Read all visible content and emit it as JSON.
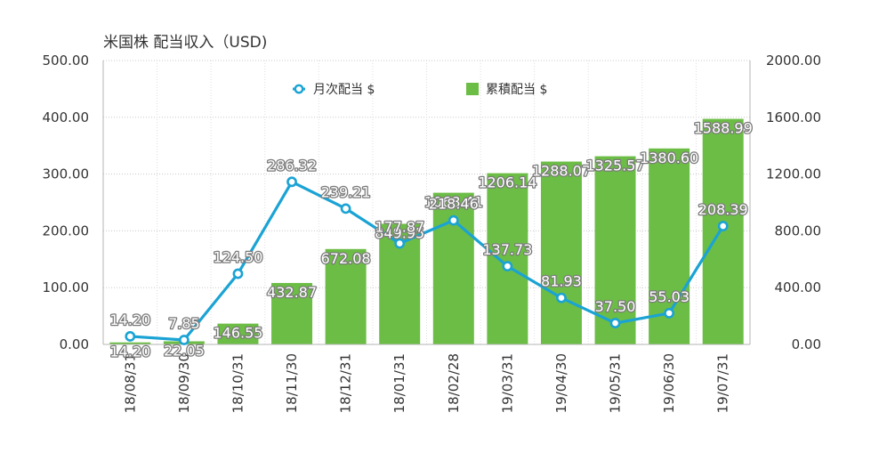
{
  "chart_data": {
    "type": "bar+line",
    "title": "米国株 配当収入（USD)",
    "categories": [
      "18/08/31",
      "18/09/30",
      "18/10/31",
      "18/11/30",
      "18/12/31",
      "18/01/31",
      "18/02/28",
      "19/03/31",
      "19/04/30",
      "19/05/31",
      "19/06/30",
      "19/07/31"
    ],
    "series": [
      {
        "name": "月次配当 $",
        "type": "line",
        "axis": "left",
        "color": "#1aa3d4",
        "values": [
          14.2,
          7.85,
          124.5,
          286.32,
          239.21,
          177.87,
          218.46,
          137.73,
          81.93,
          37.5,
          55.03,
          208.39
        ],
        "labels": [
          "14.20",
          "7.85",
          "124.50",
          "286.32",
          "239.21",
          "177.87",
          "218.46",
          "137.73",
          "81.93",
          "37.50",
          "55.03",
          "208.39"
        ]
      },
      {
        "name": "累積配当 $",
        "type": "bar",
        "axis": "right",
        "color": "#6cbd45",
        "values": [
          14.2,
          22.05,
          146.55,
          432.87,
          672.08,
          849.95,
          1068.41,
          1206.14,
          1288.07,
          1325.57,
          1380.6,
          1588.99
        ],
        "labels": [
          "14.20",
          "22.05",
          "146.55",
          "432.87",
          "672.08",
          "849.95",
          "1068.41",
          "1206.14",
          "1288.07",
          "1325.57",
          "1380.60",
          "1588.99"
        ]
      }
    ],
    "y_left": {
      "ylim": [
        0,
        500
      ],
      "ticks": [
        "0.00",
        "100.00",
        "200.00",
        "300.00",
        "400.00",
        "500.00"
      ]
    },
    "y_right": {
      "ylim": [
        0,
        2000
      ],
      "ticks": [
        "0.00",
        "400.00",
        "800.00",
        "1200.00",
        "1600.00",
        "2000.00"
      ]
    },
    "grid": true,
    "legend_position": "top"
  }
}
